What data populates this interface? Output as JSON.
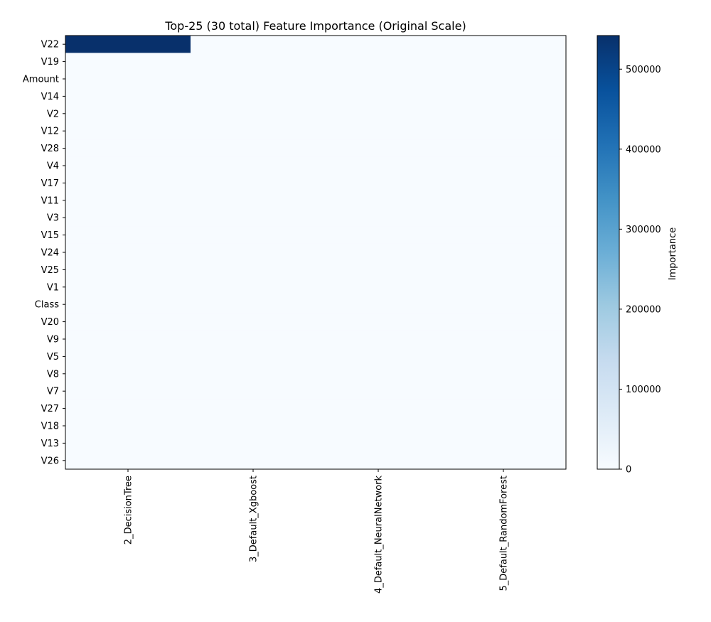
{
  "chart_data": {
    "type": "heatmap",
    "title": "Top-25 (30 total) Feature Importance (Original Scale)",
    "rows": [
      "V22",
      "V19",
      "Amount",
      "V14",
      "V2",
      "V12",
      "V28",
      "V4",
      "V17",
      "V11",
      "V3",
      "V15",
      "V24",
      "V25",
      "V1",
      "Class",
      "V20",
      "V9",
      "V5",
      "V8",
      "V7",
      "V27",
      "V18",
      "V13",
      "V26"
    ],
    "columns": [
      "2_DecisionTree",
      "3_Default_Xgboost",
      "4_Default_NeuralNetwork",
      "5_Default_RandomForest"
    ],
    "values": [
      [
        542000,
        0,
        0,
        0
      ],
      [
        0,
        0,
        0,
        0
      ],
      [
        0,
        0,
        0,
        0
      ],
      [
        0,
        0,
        0,
        0
      ],
      [
        0,
        0,
        0,
        0
      ],
      [
        0,
        0,
        0,
        0
      ],
      [
        0,
        0,
        0,
        0
      ],
      [
        0,
        0,
        0,
        0
      ],
      [
        0,
        0,
        0,
        0
      ],
      [
        0,
        0,
        0,
        0
      ],
      [
        0,
        0,
        0,
        0
      ],
      [
        0,
        0,
        0,
        0
      ],
      [
        0,
        0,
        0,
        0
      ],
      [
        0,
        0,
        0,
        0
      ],
      [
        0,
        0,
        0,
        0
      ],
      [
        0,
        0,
        0,
        0
      ],
      [
        0,
        0,
        0,
        0
      ],
      [
        0,
        0,
        0,
        0
      ],
      [
        0,
        0,
        0,
        0
      ],
      [
        0,
        0,
        0,
        0
      ],
      [
        0,
        0,
        0,
        0
      ],
      [
        0,
        0,
        0,
        0
      ],
      [
        0,
        0,
        0,
        0
      ],
      [
        0,
        0,
        0,
        0
      ],
      [
        0,
        0,
        0,
        0
      ]
    ],
    "colormap": "Blues",
    "colorbar": {
      "label": "Importance",
      "range": [
        0,
        542000
      ],
      "ticks": [
        0,
        100000,
        200000,
        300000,
        400000,
        500000
      ],
      "tick_labels": [
        "0",
        "100000",
        "200000",
        "300000",
        "400000",
        "500000"
      ]
    },
    "grid": false
  }
}
